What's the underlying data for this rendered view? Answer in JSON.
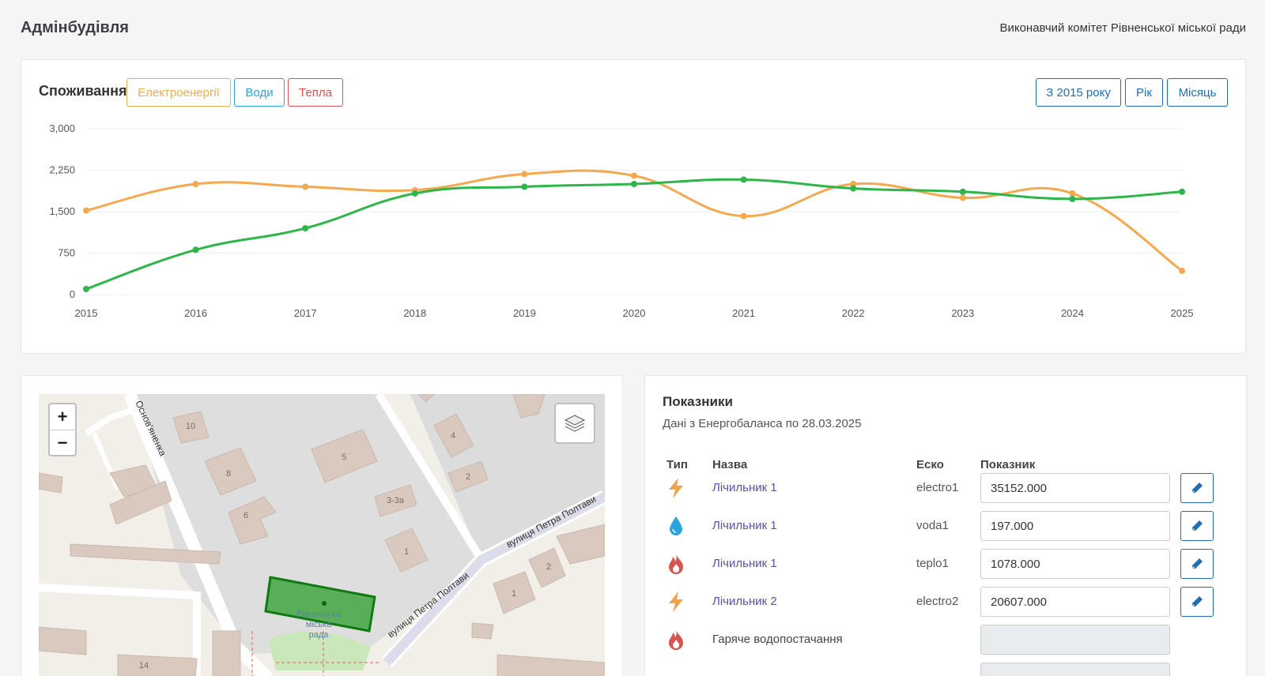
{
  "header": {
    "title": "Адмінбудівля",
    "organization": "Виконавчий комітет Рівненської міської ради"
  },
  "consumption": {
    "title": "Споживання",
    "filters": [
      "Електроенергії",
      "Води",
      "Тепла"
    ],
    "ranges": [
      "З 2015 року",
      "Рік",
      "Місяць"
    ]
  },
  "colors": {
    "electricity": "#f0ad4e",
    "water": "#2ba3dc",
    "heat": "#d9534f",
    "primary": "#1f6fb2",
    "series_orange": "#f5a94f",
    "series_green": "#2fb64a"
  },
  "chart_data": {
    "type": "line",
    "title": "",
    "xlabel": "",
    "ylabel": "",
    "categories": [
      "2015",
      "2016",
      "2017",
      "2018",
      "2019",
      "2020",
      "2021",
      "2022",
      "2023",
      "2024",
      "2025"
    ],
    "yticks": [
      "0",
      "750",
      "1,500",
      "2,250",
      "3,000"
    ],
    "ylim": [
      0,
      3000
    ],
    "series": [
      {
        "name": "orange",
        "values": [
          1520,
          2000,
          1950,
          1890,
          2180,
          2150,
          1420,
          2000,
          1750,
          1830,
          430
        ]
      },
      {
        "name": "green",
        "values": [
          100,
          810,
          1200,
          1830,
          1950,
          2000,
          2080,
          1920,
          1860,
          1730,
          1860
        ]
      }
    ]
  },
  "map": {
    "zoom_in": "+",
    "zoom_out": "−",
    "streets": [
      "вулиця Петра Полтави",
      "вулиця Петра Полтави",
      "Основ'яненка"
    ],
    "building_numbers": [
      "10",
      "8",
      "6",
      "5",
      "4",
      "2",
      "3-3а",
      "1",
      "2",
      "1",
      "14"
    ],
    "marker_label": [
      "Рівненська",
      "міська",
      "рада"
    ]
  },
  "indicators": {
    "title": "Показники",
    "subtitle": "Дані з Енергобаланса по 28.03.2025",
    "columns": [
      "Тип",
      "Назва",
      "Еско",
      "Показник"
    ],
    "rows": [
      {
        "type_icon": "lightning-icon",
        "name": "Лічильник 1",
        "esco": "electro1",
        "value": "35152.000"
      },
      {
        "type_icon": "water-drop-icon",
        "name": "Лічильник 1",
        "esco": "voda1",
        "value": "197.000"
      },
      {
        "type_icon": "flame-icon",
        "name": "Лічильник 1",
        "esco": "teplo1",
        "value": "1078.000"
      },
      {
        "type_icon": "lightning-icon",
        "name": "Лічильник 2",
        "esco": "electro2",
        "value": "20607.000"
      },
      {
        "type_icon": "flame-icon",
        "name": "Гаряче водопостачання",
        "esco": "",
        "value": ""
      }
    ]
  }
}
